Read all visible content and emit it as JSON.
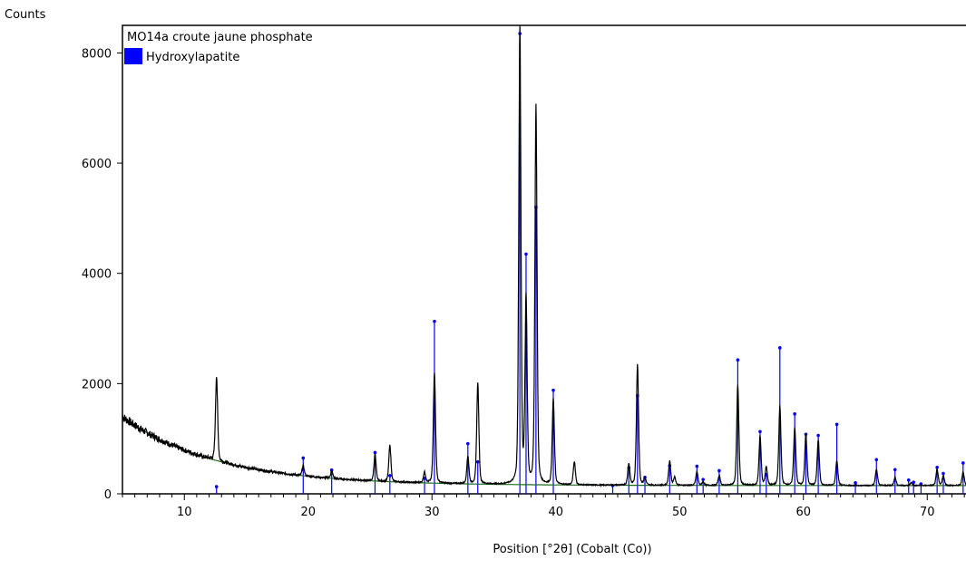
{
  "chart_data": {
    "type": "line",
    "ylabel": "Counts",
    "xlabel": "Position [°2θ] (Cobalt (Co))",
    "xlim": [
      5,
      73.5
    ],
    "ylim": [
      0,
      8500
    ],
    "x_ticks": [
      10,
      20,
      30,
      40,
      50,
      60,
      70
    ],
    "y_ticks": [
      0,
      2000,
      4000,
      6000,
      8000
    ],
    "x_tick_labels": [
      "10",
      "20",
      "30",
      "40",
      "50",
      "60",
      "70"
    ],
    "y_tick_labels": [
      "0",
      "2000",
      "4000",
      "6000",
      "8000"
    ],
    "legend_position": "top-left",
    "colors": {
      "pattern": "#000000",
      "background": "#1f6b1f",
      "reference": "#0000ff",
      "axes": "#000000"
    },
    "series": [
      {
        "name": "MO14a croute jaune phosphate",
        "background_start": 1400,
        "background_floor": 150,
        "peaks": [
          {
            "x": 12.6,
            "y": 2150
          },
          {
            "x": 19.6,
            "y": 510
          },
          {
            "x": 21.9,
            "y": 420
          },
          {
            "x": 25.4,
            "y": 720
          },
          {
            "x": 26.6,
            "y": 880
          },
          {
            "x": 29.4,
            "y": 390
          },
          {
            "x": 30.2,
            "y": 2200
          },
          {
            "x": 32.9,
            "y": 680
          },
          {
            "x": 33.7,
            "y": 2020
          },
          {
            "x": 37.1,
            "y": 8550
          },
          {
            "x": 37.6,
            "y": 3500
          },
          {
            "x": 38.4,
            "y": 7050
          },
          {
            "x": 39.8,
            "y": 1720
          },
          {
            "x": 41.5,
            "y": 580
          },
          {
            "x": 45.9,
            "y": 540
          },
          {
            "x": 46.6,
            "y": 2350
          },
          {
            "x": 47.2,
            "y": 280
          },
          {
            "x": 49.2,
            "y": 590
          },
          {
            "x": 49.6,
            "y": 300
          },
          {
            "x": 51.4,
            "y": 400
          },
          {
            "x": 51.9,
            "y": 220
          },
          {
            "x": 53.2,
            "y": 330
          },
          {
            "x": 54.7,
            "y": 1980
          },
          {
            "x": 56.5,
            "y": 1050
          },
          {
            "x": 57.0,
            "y": 480
          },
          {
            "x": 58.1,
            "y": 1600
          },
          {
            "x": 59.3,
            "y": 1200
          },
          {
            "x": 60.2,
            "y": 1080
          },
          {
            "x": 61.2,
            "y": 980
          },
          {
            "x": 62.7,
            "y": 600
          },
          {
            "x": 65.9,
            "y": 450
          },
          {
            "x": 67.4,
            "y": 300
          },
          {
            "x": 68.7,
            "y": 200
          },
          {
            "x": 70.8,
            "y": 450
          },
          {
            "x": 71.3,
            "y": 330
          },
          {
            "x": 72.9,
            "y": 400
          }
        ]
      },
      {
        "name": "Hydroxylapatite",
        "type": "stick",
        "sticks": [
          {
            "x": 12.6,
            "y": 130
          },
          {
            "x": 19.6,
            "y": 650
          },
          {
            "x": 21.9,
            "y": 430
          },
          {
            "x": 25.4,
            "y": 750
          },
          {
            "x": 26.6,
            "y": 330
          },
          {
            "x": 29.4,
            "y": 280
          },
          {
            "x": 30.2,
            "y": 3130
          },
          {
            "x": 32.9,
            "y": 910
          },
          {
            "x": 33.7,
            "y": 580
          },
          {
            "x": 37.1,
            "y": 8350
          },
          {
            "x": 37.6,
            "y": 4350
          },
          {
            "x": 38.4,
            "y": 5200
          },
          {
            "x": 39.8,
            "y": 1880
          },
          {
            "x": 44.6,
            "y": 150
          },
          {
            "x": 45.9,
            "y": 470
          },
          {
            "x": 46.6,
            "y": 1780
          },
          {
            "x": 47.2,
            "y": 300
          },
          {
            "x": 49.2,
            "y": 510
          },
          {
            "x": 51.4,
            "y": 500
          },
          {
            "x": 51.9,
            "y": 260
          },
          {
            "x": 53.2,
            "y": 420
          },
          {
            "x": 54.7,
            "y": 2430
          },
          {
            "x": 56.5,
            "y": 1130
          },
          {
            "x": 57.0,
            "y": 350
          },
          {
            "x": 58.1,
            "y": 2650
          },
          {
            "x": 59.3,
            "y": 1450
          },
          {
            "x": 60.2,
            "y": 1080
          },
          {
            "x": 61.2,
            "y": 1060
          },
          {
            "x": 62.7,
            "y": 1260
          },
          {
            "x": 64.2,
            "y": 200
          },
          {
            "x": 65.9,
            "y": 620
          },
          {
            "x": 67.4,
            "y": 440
          },
          {
            "x": 68.5,
            "y": 250
          },
          {
            "x": 68.9,
            "y": 210
          },
          {
            "x": 69.5,
            "y": 180
          },
          {
            "x": 70.8,
            "y": 480
          },
          {
            "x": 71.3,
            "y": 370
          },
          {
            "x": 72.9,
            "y": 560
          }
        ]
      }
    ]
  }
}
